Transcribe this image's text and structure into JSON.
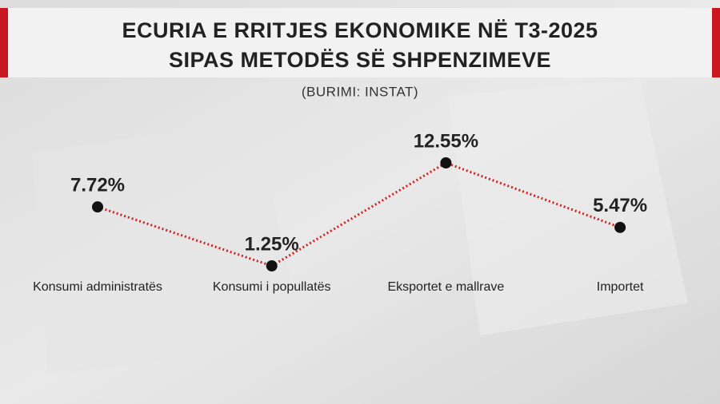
{
  "chart_data": {
    "type": "line",
    "title": [
      "ECURIA E RRITJES EKONOMIKE NË T3-2025",
      "SIPAS METODËS SË SHPENZIMEVE"
    ],
    "subtitle": "(BURIMI: INSTAT)",
    "categories": [
      "Konsumi administratës",
      "Konsumi i popullatës",
      "Eksportet e mallrave",
      "Importet"
    ],
    "values": [
      7.72,
      1.25,
      12.55,
      5.47
    ],
    "value_labels": [
      "7.72%",
      "1.25%",
      "12.55%",
      "5.47%"
    ],
    "color": "#d42020",
    "marker_color": "#111111"
  }
}
